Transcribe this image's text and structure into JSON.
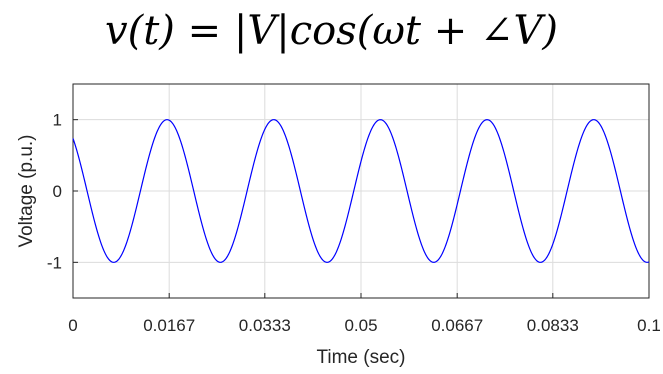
{
  "equation": {
    "text": "v(t) = |V|cos(ωt + ∠V)"
  },
  "colors": {
    "line": "#0000ff",
    "grid": "#dcdcdc",
    "axis": "#262626"
  },
  "chart_data": {
    "type": "line",
    "title": "",
    "xlabel": "Time (sec)",
    "ylabel": "Voltage (p.u.)",
    "xlim": [
      0,
      0.1
    ],
    "ylim": [
      -1.5,
      1.5
    ],
    "x_ticks": [
      0,
      0.0167,
      0.0333,
      0.05,
      0.0667,
      0.0833,
      0.1
    ],
    "x_tick_labels": [
      "0",
      "0.0167",
      "0.0333",
      "0.05",
      "0.0667",
      "0.0833",
      "0.1"
    ],
    "y_ticks": [
      1,
      0,
      -1
    ],
    "y_tick_labels": [
      "1",
      "0",
      "-1"
    ],
    "grid": true,
    "series": [
      {
        "function": "cos(2πft + φ)",
        "amplitude": 1,
        "frequency_hz": 54,
        "phase_deg": 42.5
      }
    ]
  }
}
